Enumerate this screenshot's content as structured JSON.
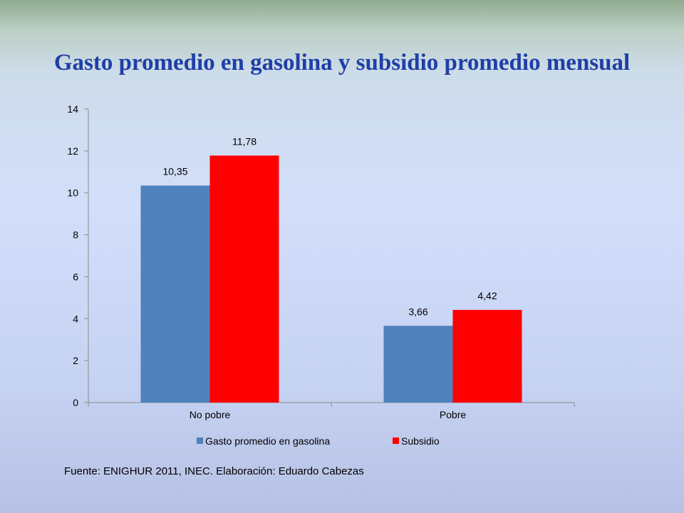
{
  "slide": {
    "title": "Gasto promedio en gasolina y subsidio promedio mensual",
    "source": "Fuente: ENIGHUR 2011, INEC. Elaboración: Eduardo Cabezas"
  },
  "chart_data": {
    "type": "bar",
    "title": "",
    "xlabel": "",
    "ylabel": "",
    "categories": [
      "No pobre",
      "Pobre"
    ],
    "series": [
      {
        "name": "Gasto promedio en gasolina",
        "values": [
          10.35,
          3.66
        ],
        "labels": [
          "10,35",
          "3,66"
        ],
        "color": "#4f81bd"
      },
      {
        "name": "Subsidio",
        "values": [
          11.78,
          4.42
        ],
        "labels": [
          "11,78",
          "4,42"
        ],
        "color": "#ff0000"
      }
    ],
    "ylim": [
      0,
      14
    ],
    "yticks": [
      0,
      2,
      4,
      6,
      8,
      10,
      12,
      14
    ],
    "grid": false,
    "legend": "bottom"
  }
}
